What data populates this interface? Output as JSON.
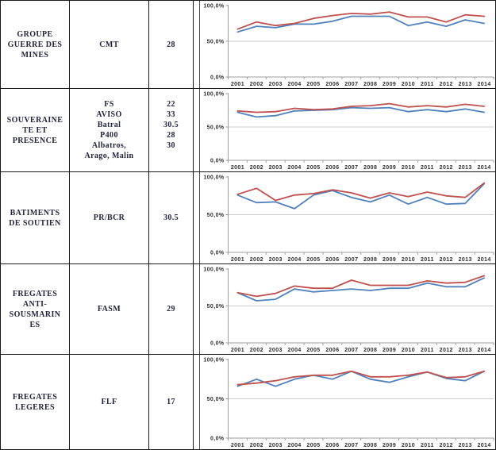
{
  "table": {
    "rows": [
      {
        "category": [
          "GROUPE",
          "GUERRE DES",
          "MINES"
        ],
        "types": [
          "CMT"
        ],
        "quantities": [
          "28"
        ]
      },
      {
        "category": [
          "SOUVERAINE",
          "TE ET",
          "PRESENCE"
        ],
        "types": [
          "FS",
          "AVISO",
          "Batral",
          "P400",
          "Albatros,",
          "Arago, Malin"
        ],
        "quantities": [
          "22",
          "33",
          "30.5",
          "28",
          "30"
        ]
      },
      {
        "category": [
          "BATIMENTS",
          "DE SOUTIEN"
        ],
        "types": [
          "PR/BCR"
        ],
        "quantities": [
          "30.5"
        ]
      },
      {
        "category": [
          "FREGATES",
          "ANTI-",
          "SOUSMARIN",
          "ES"
        ],
        "types": [
          "FASM"
        ],
        "quantities": [
          "29"
        ]
      },
      {
        "category": [
          "FREGATES",
          "LEGERES"
        ],
        "types": [
          "FLF"
        ],
        "quantities": [
          "17"
        ]
      }
    ]
  },
  "colors": {
    "series_red": "#C0504D",
    "series_blue": "#4F81BD"
  },
  "chart_data": [
    {
      "type": "line",
      "x": [
        "2001",
        "2002",
        "2003",
        "2004",
        "2005",
        "2006",
        "2007",
        "2008",
        "2009",
        "2010",
        "2011",
        "2012",
        "2013",
        "2014"
      ],
      "series": [
        {
          "name": "blue-line",
          "color": "#4F81BD",
          "values": [
            63,
            71,
            69,
            74,
            74,
            78,
            85,
            85,
            85,
            72,
            77,
            71,
            80,
            75
          ]
        },
        {
          "name": "red-line",
          "color": "#C0504D",
          "values": [
            67,
            77,
            72,
            75,
            82,
            86,
            89,
            88,
            91,
            84,
            84,
            77,
            87,
            85
          ]
        }
      ],
      "y_ticks": [
        {
          "value": 100,
          "label": "100,0%"
        },
        {
          "value": 50,
          "label": "50,0%"
        },
        {
          "value": 0,
          "label": "0,0%"
        }
      ],
      "ylim": [
        0,
        100
      ],
      "grid": "horizontal-50",
      "legend": "none"
    },
    {
      "type": "line",
      "x": [
        "2001",
        "2002",
        "2003",
        "2004",
        "2005",
        "2006",
        "2007",
        "2008",
        "2009",
        "2010",
        "2011",
        "2012",
        "2013",
        "2014"
      ],
      "series": [
        {
          "name": "blue-line",
          "color": "#4F81BD",
          "values": [
            72,
            65,
            67,
            74,
            75,
            76,
            79,
            78,
            79,
            73,
            76,
            73,
            77,
            72
          ]
        },
        {
          "name": "red-line",
          "color": "#C0504D",
          "values": [
            74,
            72,
            73,
            78,
            76,
            77,
            81,
            82,
            85,
            80,
            82,
            80,
            84,
            81
          ]
        }
      ],
      "y_ticks": [
        {
          "value": 100,
          "label": "100,0%"
        },
        {
          "value": 50,
          "label": "50,0%"
        },
        {
          "value": 0,
          "label": "0,0%"
        }
      ],
      "ylim": [
        0,
        100
      ],
      "grid": "horizontal-50",
      "legend": "none"
    },
    {
      "type": "line",
      "x": [
        "2001",
        "2002",
        "2003",
        "2004",
        "2005",
        "2006",
        "2007",
        "2008",
        "2009",
        "2010",
        "2011",
        "2012",
        "2013",
        "2014"
      ],
      "series": [
        {
          "name": "blue-line",
          "color": "#4F81BD",
          "values": [
            76,
            66,
            67,
            58,
            76,
            82,
            73,
            67,
            76,
            64,
            73,
            64,
            65,
            91
          ]
        },
        {
          "name": "red-line",
          "color": "#C0504D",
          "values": [
            77,
            85,
            69,
            76,
            78,
            83,
            79,
            72,
            79,
            74,
            80,
            75,
            73,
            92
          ]
        }
      ],
      "y_ticks": [
        {
          "value": 100,
          "label": "100,0%"
        },
        {
          "value": 50,
          "label": "50,0%"
        },
        {
          "value": 0,
          "label": "0,0%"
        }
      ],
      "ylim": [
        0,
        100
      ],
      "grid": "horizontal-50",
      "legend": "none"
    },
    {
      "type": "line",
      "x": [
        "2001",
        "2002",
        "2003",
        "2004",
        "2005",
        "2006",
        "2007",
        "2008",
        "2009",
        "2010",
        "2011",
        "2012",
        "2013",
        "2014"
      ],
      "series": [
        {
          "name": "blue-line",
          "color": "#4F81BD",
          "values": [
            68,
            57,
            59,
            73,
            69,
            71,
            73,
            71,
            74,
            74,
            81,
            76,
            76,
            88
          ]
        },
        {
          "name": "red-line",
          "color": "#C0504D",
          "values": [
            68,
            63,
            67,
            77,
            74,
            74,
            85,
            78,
            78,
            78,
            84,
            81,
            82,
            91
          ]
        }
      ],
      "y_ticks": [
        {
          "value": 100,
          "label": "100,0%"
        },
        {
          "value": 50,
          "label": "50,0%"
        },
        {
          "value": 0,
          "label": "0,0%"
        }
      ],
      "ylim": [
        0,
        100
      ],
      "grid": "horizontal-50",
      "legend": "none"
    },
    {
      "type": "line",
      "x": [
        "2001",
        "2002",
        "2003",
        "2004",
        "2005",
        "2006",
        "2007",
        "2008",
        "2009",
        "2010",
        "2011",
        "2012",
        "2013",
        "2014"
      ],
      "series": [
        {
          "name": "blue-line",
          "color": "#4F81BD",
          "values": [
            66,
            75,
            66,
            75,
            80,
            75,
            85,
            75,
            71,
            78,
            84,
            76,
            73,
            85
          ]
        },
        {
          "name": "red-line",
          "color": "#C0504D",
          "values": [
            68,
            70,
            73,
            78,
            80,
            80,
            85,
            78,
            78,
            80,
            84,
            77,
            78,
            85
          ]
        }
      ],
      "y_ticks": [
        {
          "value": 100,
          "label": "100,0%"
        },
        {
          "value": 50,
          "label": "50,0%"
        },
        {
          "value": 0,
          "label": "0,0%"
        }
      ],
      "ylim": [
        0,
        100
      ],
      "grid": "horizontal-50",
      "legend": "none"
    }
  ]
}
